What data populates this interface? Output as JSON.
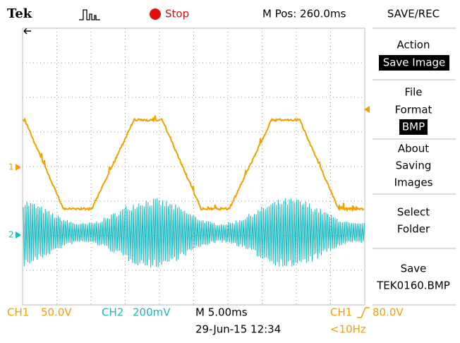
{
  "header": {
    "brand": "Tek",
    "status": "Stop",
    "position": "M Pos: 260.0ms",
    "menu_title": "SAVE/REC"
  },
  "menu": [
    {
      "lines": [
        "Action"
      ],
      "value": "Save Image"
    },
    {
      "lines": [
        "File",
        "Format"
      ],
      "value": "BMP"
    },
    {
      "lines": [
        "About",
        "Saving",
        "Images"
      ]
    },
    {
      "lines": [
        "Select",
        "Folder"
      ]
    },
    {
      "lines": [
        "Save"
      ],
      "value": "TEK0160.BMP"
    }
  ],
  "markers": {
    "ch1": "1",
    "ch2": "2"
  },
  "footer": {
    "ch1_label": "CH1",
    "ch1_scale": "50.0V",
    "ch2_label": "CH2",
    "ch2_scale": "200mV",
    "timebase": "M 5.00ms",
    "trigger_source": "CH1",
    "trigger_level": "80.0V",
    "date": "29-Jun-15 12:34",
    "frequency": "<10Hz"
  }
}
